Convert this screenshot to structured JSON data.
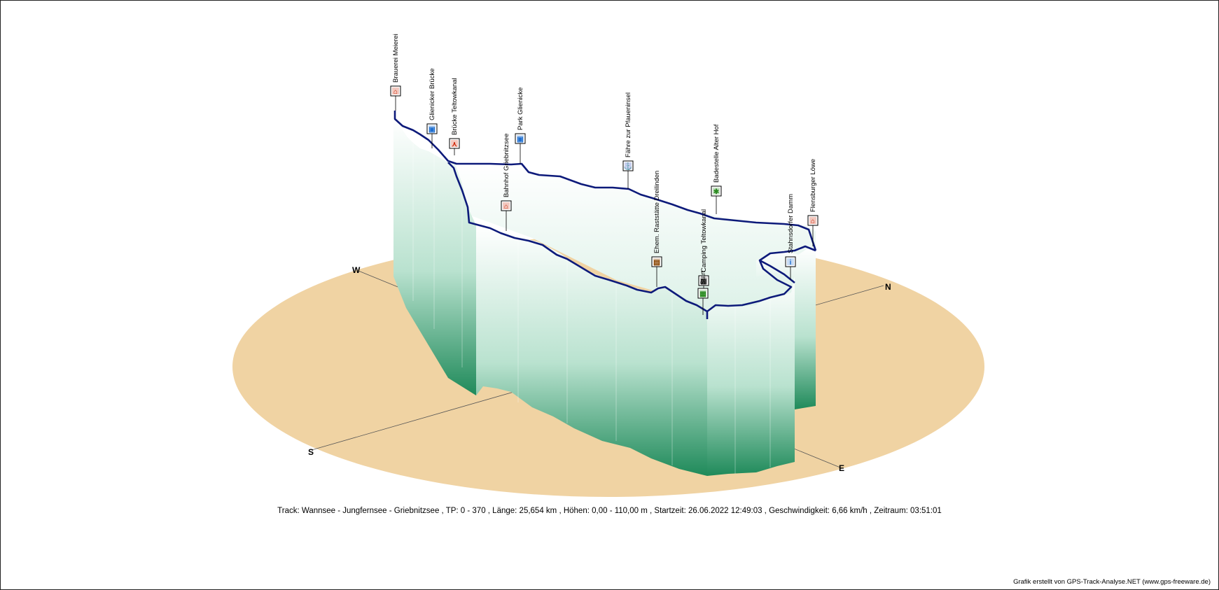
{
  "chart_data": {
    "type": "3d-track-elevation",
    "compass": {
      "w": "W",
      "n": "N",
      "s": "S",
      "e": "E"
    },
    "waypoints": [
      {
        "name": "Brauerei Meierei",
        "icon": "restaurant-icon",
        "color": "#cc2200"
      },
      {
        "name": "Glienicker Brücke",
        "icon": "photo-icon",
        "color": "#1f6fd0"
      },
      {
        "name": "Brücke Teltowkanal",
        "icon": "bridge-icon",
        "color": "#cc2200"
      },
      {
        "name": "Park Glienicke",
        "icon": "photo-icon",
        "color": "#1f6fd0"
      },
      {
        "name": "Bahnhof Griebnitzsee",
        "icon": "station-icon",
        "color": "#cc2200"
      },
      {
        "name": "Fähre zur Pfaueninsel",
        "icon": "ferry-icon",
        "color": "#1f3fc0"
      },
      {
        "name": "Ehem. Raststätte Dreilinden",
        "icon": "building-icon",
        "color": "#884400"
      },
      {
        "name": "Badestelle Alter Hof",
        "icon": "swimming-icon",
        "color": "#2a8a20"
      },
      {
        "name": "Camping Teltowkanal",
        "icon": "finish-flag-icon",
        "color": "#333333"
      },
      {
        "name": "Start",
        "icon": "start-flag-icon",
        "color": "#2a8a20"
      },
      {
        "name": "Stahnsdorfer Damm",
        "icon": "info-icon",
        "color": "#1f6fd0"
      },
      {
        "name": "Flensburger Löwe",
        "icon": "monument-icon",
        "color": "#cc2200"
      }
    ]
  },
  "summary": "Track: Wannsee - Jungfernsee - Griebnitzsee  ,  TP: 0 - 370  ,  Länge: 25,654 km  ,  Höhen: 0,00 - 110,00 m  ,  Startzeit: 26.06.2022 12:49:03  ,  Geschwindigkeit: 6,66 km/h  ,  Zeitraum: 03:51:01",
  "credit": "Grafik erstellt von GPS-Track-Analyse.NET (www.gps-freeware.de)"
}
